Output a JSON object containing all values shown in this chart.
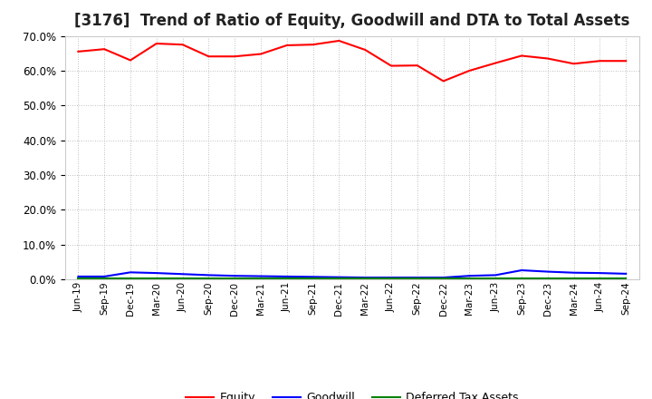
{
  "title": "[3176]  Trend of Ratio of Equity, Goodwill and DTA to Total Assets",
  "x_labels": [
    "Jun-19",
    "Sep-19",
    "Dec-19",
    "Mar-20",
    "Jun-20",
    "Sep-20",
    "Dec-20",
    "Mar-21",
    "Jun-21",
    "Sep-21",
    "Dec-21",
    "Mar-22",
    "Jun-22",
    "Sep-22",
    "Dec-22",
    "Mar-23",
    "Jun-23",
    "Sep-23",
    "Dec-23",
    "Mar-24",
    "Jun-24",
    "Sep-24"
  ],
  "equity": [
    0.655,
    0.662,
    0.63,
    0.678,
    0.675,
    0.641,
    0.641,
    0.648,
    0.673,
    0.675,
    0.686,
    0.66,
    0.614,
    0.615,
    0.57,
    0.6,
    0.622,
    0.643,
    0.635,
    0.62,
    0.628,
    0.628
  ],
  "goodwill": [
    0.008,
    0.008,
    0.02,
    0.018,
    0.015,
    0.012,
    0.01,
    0.009,
    0.008,
    0.007,
    0.006,
    0.005,
    0.005,
    0.005,
    0.005,
    0.01,
    0.012,
    0.026,
    0.022,
    0.019,
    0.018,
    0.016
  ],
  "dta": [
    0.002,
    0.002,
    0.002,
    0.002,
    0.002,
    0.002,
    0.002,
    0.002,
    0.002,
    0.002,
    0.002,
    0.002,
    0.002,
    0.002,
    0.002,
    0.002,
    0.002,
    0.002,
    0.002,
    0.002,
    0.002,
    0.002
  ],
  "equity_color": "#FF0000",
  "goodwill_color": "#0000FF",
  "dta_color": "#008000",
  "ylim": [
    0.0,
    0.7
  ],
  "yticks": [
    0.0,
    0.1,
    0.2,
    0.3,
    0.4,
    0.5,
    0.6,
    0.7
  ],
  "background_color": "#FFFFFF",
  "plot_bg_color": "#FFFFFF",
  "grid_color": "#AAAAAA",
  "title_fontsize": 12,
  "legend_labels": [
    "Equity",
    "Goodwill",
    "Deferred Tax Assets"
  ]
}
